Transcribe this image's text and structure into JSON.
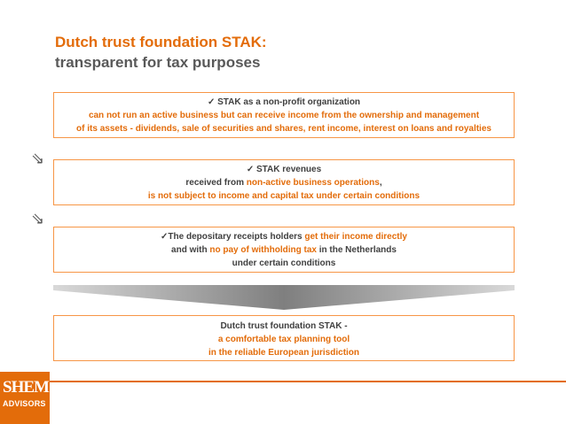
{
  "title": {
    "line1": "Dutch trust foundation STAK:",
    "line2": "transparent for tax purposes"
  },
  "box1": {
    "check": "✓",
    "heading": "STAK as a non-profit organization",
    "line2": "can not run an active business but can receive income from the ownership and management",
    "line3": "of its assets - dividends, sale of securities and shares, rent income, interest on loans and royalties"
  },
  "box2": {
    "check": "✓",
    "heading": "STAK revenues",
    "line2_pre": "received from ",
    "line2_highlight": "non-active business operations",
    "line2_post": ",",
    "line3": "is not subject to income and capital tax under certain conditions"
  },
  "box3": {
    "check": "✓",
    "line1_pre": "The depositary receipts holders ",
    "line1_highlight": "get their income directly",
    "line2_pre": "and with ",
    "line2_highlight": "no pay of withholding tax",
    "line2_post": " in the Netherlands",
    "line3": "under certain conditions"
  },
  "box4": {
    "line1": "Dutch trust foundation STAK -",
    "line2": "a comfortable tax planning tool",
    "line3": "in the reliable European jurisdiction"
  },
  "arrows": {
    "glyph": "⇘"
  },
  "logo": {
    "big": "SHEM",
    "small": "ADVISORS",
    "color": "#e36c0a"
  },
  "colors": {
    "accent": "#e36c0a",
    "border": "#f79646",
    "text": "#404040"
  }
}
